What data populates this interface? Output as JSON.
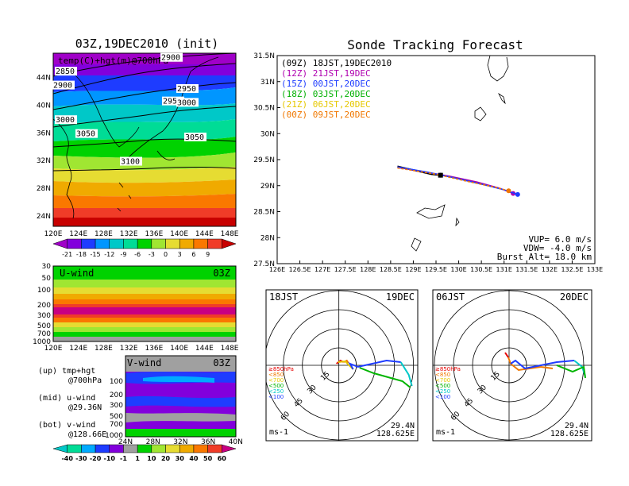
{
  "left": {
    "title": "03Z,19DEC2010 (init)",
    "map_label": "temp(C)+hgt(m)@700hPa",
    "lat_ticks": [
      "44N",
      "40N",
      "36N",
      "32N",
      "28N",
      "24N"
    ],
    "lon_ticks": [
      "120E",
      "124E",
      "128E",
      "132E",
      "136E",
      "140E",
      "144E",
      "148E"
    ],
    "contours": [
      {
        "label": "2850",
        "y_lat": 44.5
      },
      {
        "label": "2900",
        "y_lat": 46.5
      },
      {
        "label": "2900",
        "y_lat": 42.5
      },
      {
        "label": "2950",
        "y_lat": 40.2
      },
      {
        "label": "2950",
        "y_lat": 42.0
      },
      {
        "label": "3000",
        "y_lat": 37.5
      },
      {
        "label": "3000",
        "y_lat": 40.0
      },
      {
        "label": "3050",
        "y_lat": 35.5
      },
      {
        "label": "3050",
        "y_lat": 35.0
      },
      {
        "label": "3100",
        "y_lat": 31.5
      }
    ],
    "temp_colorbar": {
      "labels": [
        "-21",
        "-18",
        "-15",
        "-12",
        "-9",
        "-6",
        "-3",
        "0",
        "3",
        "6",
        "9"
      ],
      "colors": [
        "#a000c8",
        "#8200dc",
        "#1e3cff",
        "#0096ff",
        "#00c8c8",
        "#00dc96",
        "#00d200",
        "#a0e632",
        "#e6dc32",
        "#f0aa00",
        "#fa7800",
        "#f03c28",
        "#c80000"
      ]
    },
    "uwind": {
      "title": "U-wind",
      "time": "03Z",
      "levels": [
        "30",
        "50",
        "100",
        "200",
        "300",
        "500",
        "700",
        "1000"
      ],
      "lon_ticks": [
        "120E",
        "124E",
        "128E",
        "132E",
        "136E",
        "140E",
        "144E",
        "148E"
      ]
    },
    "vwind": {
      "title": "V-wind",
      "time": "03Z",
      "levels": [
        "100",
        "200",
        "300",
        "500",
        "700",
        "1000"
      ],
      "lat_ticks": [
        "24N",
        "28N",
        "32N",
        "36N",
        "40N"
      ]
    },
    "wind_colorbar": {
      "labels": [
        "-40",
        "-30",
        "-20",
        "-10",
        "-1",
        "1",
        "10",
        "20",
        "30",
        "40",
        "50",
        "60"
      ],
      "colors": [
        "#00c8c8",
        "#00dc96",
        "#00aaff",
        "#1e3cff",
        "#8200dc",
        "#a0a0a0",
        "#00d200",
        "#a0e632",
        "#e6dc32",
        "#f0aa00",
        "#fa7800",
        "#f03c28",
        "#c80082"
      ]
    },
    "legend_notes": [
      {
        "line1": "(up) tmp+hgt",
        "line2": "@700hPa"
      },
      {
        "line1": "(mid) u-wind",
        "line2": "@29.36N"
      },
      {
        "line1": "(bot) v-wind",
        "line2": "@128.66E"
      }
    ]
  },
  "right": {
    "title": "Sonde Tracking Forecast",
    "track_legend": [
      {
        "text": "(09Z)  18JST,19DEC2010",
        "color": "#000000"
      },
      {
        "text": "(12Z)  21JST,19DEC",
        "color": "#b000b0"
      },
      {
        "text": "(15Z)  00JST,20DEC",
        "color": "#1e3cff"
      },
      {
        "text": "(18Z)  03JST,20DEC",
        "color": "#00b000"
      },
      {
        "text": "(21Z)  06JST,20DEC",
        "color": "#e6c800"
      },
      {
        "text": "(00Z)  09JST,20DEC",
        "color": "#f07800"
      }
    ],
    "lat_ticks": [
      "31.5N",
      "31N",
      "30.5N",
      "30N",
      "29.5N",
      "29N",
      "28.5N",
      "28N",
      "27.5N"
    ],
    "lon_ticks": [
      "126E",
      "126.5E",
      "127E",
      "127.5E",
      "128E",
      "128.5E",
      "129E",
      "129.5E",
      "130E",
      "130.5E",
      "131E",
      "131.5E",
      "132E",
      "132.5E",
      "133E"
    ],
    "params": [
      "VUP=  6.0  m/s",
      "VDW= -4.0  m/s",
      "Burst Alt= 18.0  km"
    ],
    "hodo_left": {
      "time": "18JST",
      "date": "19DEC",
      "lat": "29.4N",
      "lon": "128.625E",
      "unit": "ms-1"
    },
    "hodo_right": {
      "time": "06JST",
      "date": "20DEC",
      "lat": "29.4N",
      "lon": "128.625E",
      "unit": "ms-1"
    },
    "ring_labels": [
      "15",
      "30",
      "45",
      "60"
    ],
    "pressure_legend": [
      {
        "text": "≥850hPa",
        "color": "#e60000"
      },
      {
        "text": "<850",
        "color": "#f07800"
      },
      {
        "text": "<700",
        "color": "#e6c800"
      },
      {
        "text": "<500",
        "color": "#00b400"
      },
      {
        "text": "<250",
        "color": "#00c8c8"
      },
      {
        "text": "<100",
        "color": "#1e3cff"
      }
    ]
  },
  "chart_data": [
    {
      "type": "heatmap",
      "title": "03Z,19DEC2010 (init)",
      "subtitle": "temp(C)+hgt(m)@700hPa",
      "x_range": [
        120,
        149
      ],
      "y_range": [
        22.5,
        47.5
      ],
      "contours_m": [
        2850,
        2900,
        2950,
        3000,
        3050,
        3100
      ],
      "color_levels_C": [
        -21,
        -18,
        -15,
        -12,
        -9,
        -6,
        -3,
        0,
        3,
        6,
        9
      ]
    },
    {
      "type": "line",
      "title": "Sonde Tracking Forecast",
      "x_range": [
        126,
        133
      ],
      "y_range": [
        27.5,
        31.5
      ],
      "series": [
        {
          "name": "(09Z) 18JST,19DEC2010",
          "x": [
            128.65,
            129.0,
            129.4,
            129.6
          ],
          "y": [
            29.37,
            29.3,
            29.22,
            29.2
          ]
        },
        {
          "name": "(12Z) 21JST,19DEC",
          "x": [
            128.65,
            129.2,
            129.8,
            130.4,
            130.9,
            131.2
          ],
          "y": [
            29.35,
            29.27,
            29.18,
            29.07,
            28.95,
            28.85
          ]
        },
        {
          "name": "(15Z) 00JST,20DEC",
          "x": [
            128.65,
            129.3,
            129.9,
            130.5,
            131.0,
            131.3
          ],
          "y": [
            29.36,
            29.26,
            29.15,
            29.03,
            28.92,
            28.83
          ]
        },
        {
          "name": "(00Z) 09JST,20DEC",
          "x": [
            128.65,
            129.5,
            130.2,
            130.8,
            131.1
          ],
          "y": [
            29.34,
            29.22,
            29.08,
            28.97,
            28.9
          ]
        }
      ]
    }
  ]
}
